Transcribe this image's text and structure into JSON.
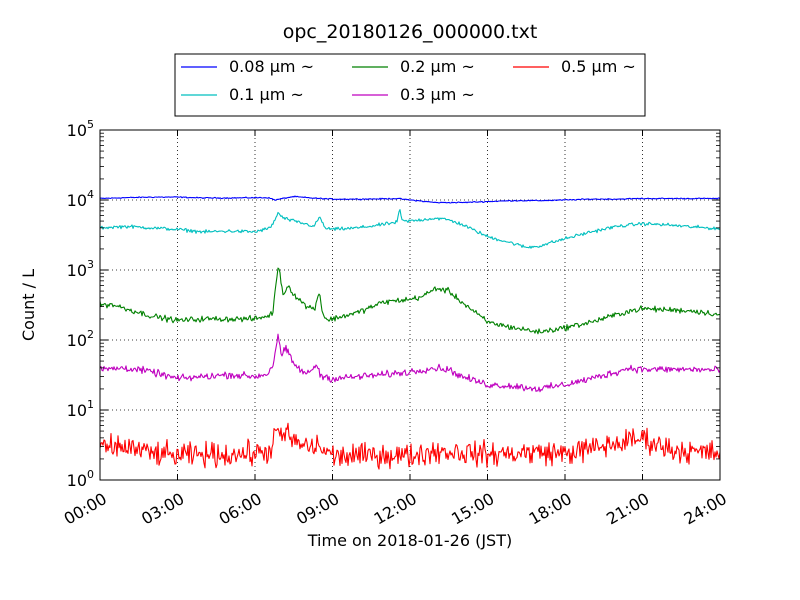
{
  "chart_data": {
    "type": "line",
    "title": "opc_20180126_000000.txt",
    "xlabel": "Time on 2018-01-26 (JST)",
    "ylabel": "Count / L",
    "x_unit": "hours",
    "xlim": [
      0,
      24
    ],
    "ylim": [
      1,
      100000
    ],
    "y_scale": "log",
    "grid": true,
    "legend_position": "top-center",
    "x_ticks": [
      {
        "value": 0,
        "label": "00:00"
      },
      {
        "value": 3,
        "label": "03:00"
      },
      {
        "value": 6,
        "label": "06:00"
      },
      {
        "value": 9,
        "label": "09:00"
      },
      {
        "value": 12,
        "label": "12:00"
      },
      {
        "value": 15,
        "label": "15:00"
      },
      {
        "value": 18,
        "label": "18:00"
      },
      {
        "value": 21,
        "label": "21:00"
      },
      {
        "value": 24,
        "label": "24:00"
      }
    ],
    "y_ticks": [
      {
        "value": 1,
        "base": "10",
        "exp": "0"
      },
      {
        "value": 10,
        "base": "10",
        "exp": "1"
      },
      {
        "value": 100,
        "base": "10",
        "exp": "2"
      },
      {
        "value": 1000,
        "base": "10",
        "exp": "3"
      },
      {
        "value": 10000,
        "base": "10",
        "exp": "4"
      },
      {
        "value": 100000,
        "base": "10",
        "exp": "5"
      }
    ],
    "series": [
      {
        "name": "0.08 μm ~",
        "color": "#0000ff",
        "noise": 0.004,
        "x": [
          0,
          1,
          2,
          3,
          4,
          5,
          6,
          6.5,
          6.8,
          7,
          7.5,
          8,
          8.5,
          9,
          10,
          11,
          11.5,
          12,
          13,
          14,
          15,
          16,
          17,
          18,
          19,
          20,
          21,
          22,
          23,
          24
        ],
        "y": [
          10500,
          10800,
          11000,
          11000,
          10700,
          10700,
          10800,
          10800,
          10000,
          10400,
          11200,
          10800,
          10500,
          10300,
          10300,
          10400,
          10500,
          10000,
          9200,
          9200,
          9500,
          9800,
          9800,
          10000,
          10300,
          10300,
          10500,
          10500,
          10500,
          10500
        ]
      },
      {
        "name": "0.1 μm ~",
        "color": "#00bfbf",
        "noise": 0.012,
        "x": [
          0,
          1,
          2,
          3,
          4,
          5,
          6,
          6.6,
          6.8,
          6.9,
          7.1,
          7.5,
          8,
          8.3,
          8.5,
          8.7,
          9,
          10,
          11,
          11.5,
          11.6,
          11.7,
          12,
          13,
          13.5,
          14,
          15,
          16,
          16.5,
          17,
          18,
          19,
          20,
          21,
          22,
          23,
          24
        ],
        "y": [
          4000,
          4200,
          4000,
          3800,
          3500,
          3600,
          3500,
          4000,
          5500,
          6500,
          5500,
          5000,
          4500,
          4200,
          5800,
          4000,
          3800,
          4000,
          4500,
          4800,
          7500,
          5000,
          5000,
          5500,
          5200,
          4500,
          3000,
          2400,
          2100,
          2200,
          2800,
          3500,
          4200,
          4600,
          4400,
          4100,
          3900
        ]
      },
      {
        "name": "0.2 μm ~",
        "color": "#008000",
        "noise": 0.02,
        "x": [
          0,
          0.5,
          1,
          2,
          3,
          4,
          5,
          6,
          6.5,
          6.7,
          6.8,
          6.9,
          7.0,
          7.1,
          7.3,
          7.5,
          8,
          8.3,
          8.5,
          8.6,
          8.8,
          9,
          10,
          11,
          12,
          12.5,
          13,
          13.5,
          14,
          15,
          16,
          17,
          18,
          19,
          20,
          20.5,
          21,
          22,
          23,
          24
        ],
        "y": [
          320,
          320,
          280,
          220,
          190,
          200,
          200,
          200,
          220,
          250,
          600,
          1200,
          700,
          450,
          600,
          450,
          300,
          280,
          500,
          250,
          190,
          200,
          250,
          350,
          380,
          420,
          550,
          500,
          350,
          180,
          150,
          130,
          150,
          180,
          230,
          260,
          280,
          270,
          260,
          230
        ]
      },
      {
        "name": "0.3 μm ~",
        "color": "#bf00bf",
        "noise": 0.025,
        "x": [
          0,
          1,
          2,
          3,
          4,
          5,
          6,
          6.5,
          6.7,
          6.9,
          7.0,
          7.2,
          7.5,
          8,
          8.4,
          8.5,
          8.7,
          9,
          10,
          11,
          12,
          12.5,
          13,
          13.5,
          14,
          15,
          16,
          17,
          18,
          19,
          20,
          20.5,
          21,
          22,
          23,
          24
        ],
        "y": [
          38,
          40,
          35,
          28,
          30,
          32,
          30,
          33,
          45,
          120,
          60,
          75,
          45,
          32,
          45,
          32,
          30,
          28,
          30,
          32,
          35,
          38,
          40,
          38,
          30,
          23,
          22,
          20,
          23,
          28,
          35,
          40,
          38,
          38,
          38,
          37
        ]
      },
      {
        "name": "0.5 μm ~",
        "color": "#ff0000",
        "noise": 0.085,
        "x": [
          0,
          1,
          2,
          3,
          4,
          5,
          6,
          6.5,
          6.7,
          6.8,
          6.9,
          7.0,
          7.2,
          7.5,
          8,
          8.5,
          9,
          10,
          11,
          12,
          13,
          14,
          15,
          16,
          17,
          18,
          19,
          20,
          21,
          22,
          23,
          24
        ],
        "y": [
          2.8,
          3.0,
          2.4,
          2.2,
          2.3,
          2.3,
          2.4,
          2.5,
          3.2,
          6.0,
          4.5,
          3.5,
          5.0,
          3.5,
          3.0,
          3.0,
          2.2,
          2.2,
          2.3,
          2.2,
          2.6,
          2.5,
          2.3,
          2.4,
          2.5,
          2.4,
          2.8,
          3.3,
          4.0,
          2.8,
          2.5,
          2.4
        ]
      }
    ]
  }
}
